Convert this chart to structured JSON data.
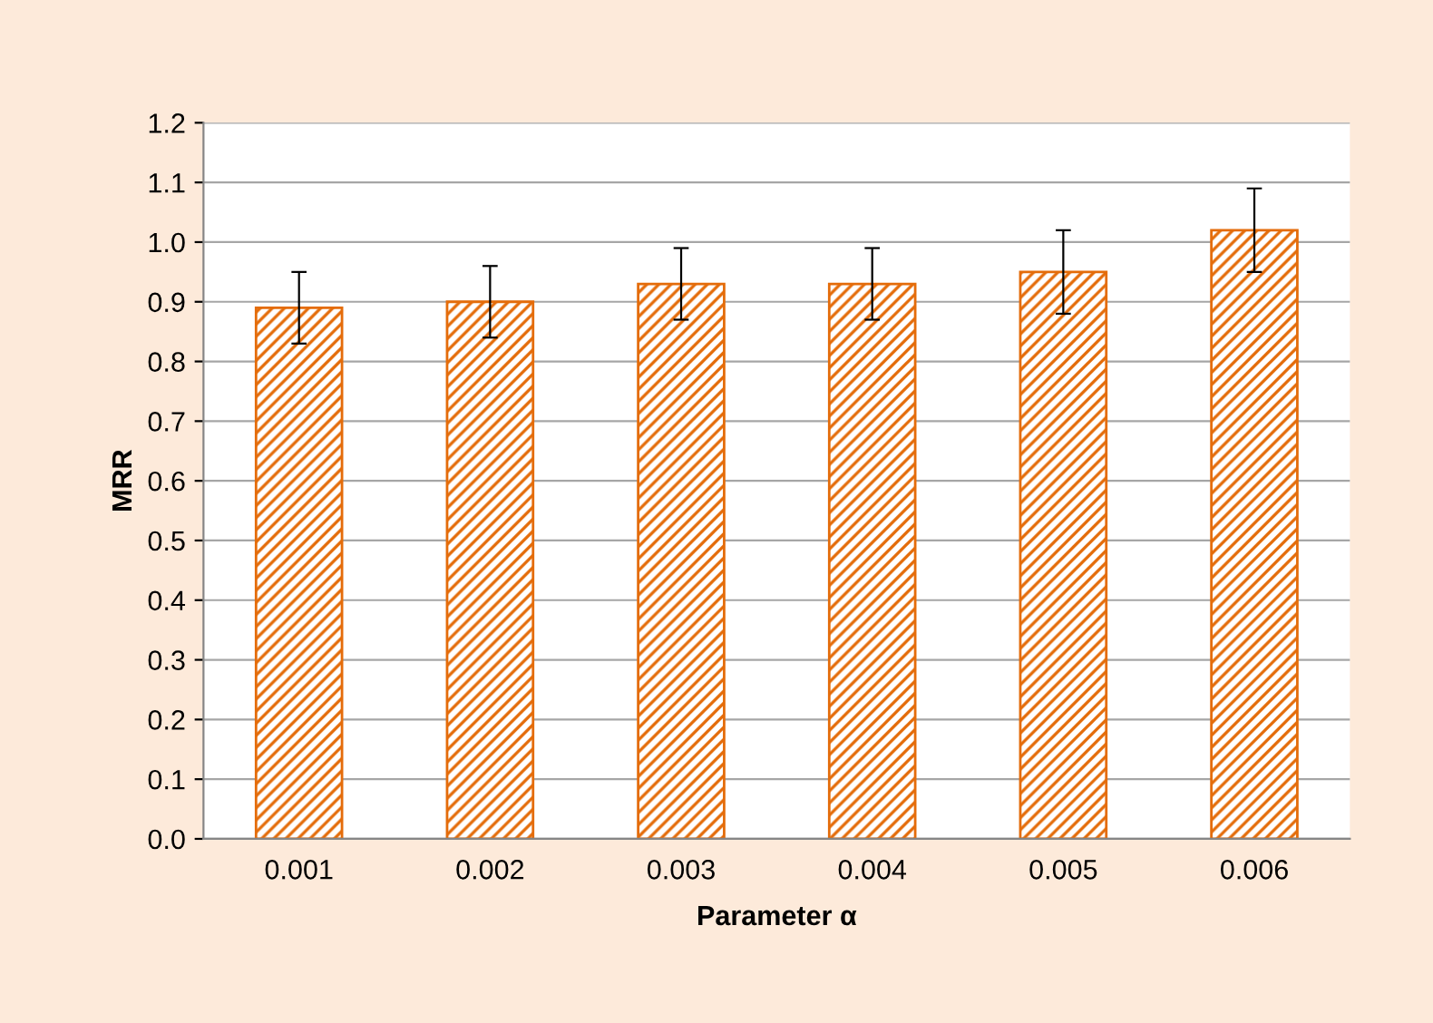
{
  "chart_data": {
    "type": "bar",
    "xlabel": "Parameter α",
    "ylabel": "MRR",
    "categories": [
      "0.001",
      "0.002",
      "0.003",
      "0.004",
      "0.005",
      "0.006"
    ],
    "values": [
      0.89,
      0.9,
      0.93,
      0.93,
      0.95,
      1.02
    ],
    "errors": [
      0.06,
      0.06,
      0.06,
      0.06,
      0.07,
      0.07
    ],
    "color": "#e46c0a",
    "ylim": [
      0,
      1.2
    ],
    "yticks": [
      {
        "value": 0,
        "label": "0.0"
      },
      {
        "value": 0.1,
        "label": "0.1"
      },
      {
        "value": 0.2,
        "label": "0.2"
      },
      {
        "value": 0.3,
        "label": "0.3"
      },
      {
        "value": 0.4,
        "label": "0.4"
      },
      {
        "value": 0.5,
        "label": "0.5"
      },
      {
        "value": 0.6,
        "label": "0.6"
      },
      {
        "value": 0.7,
        "label": "0.7"
      },
      {
        "value": 0.8,
        "label": "0.8"
      },
      {
        "value": 0.9,
        "label": "0.9"
      },
      {
        "value": 1.0,
        "label": "1.0"
      },
      {
        "value": 1.1,
        "label": "1.1"
      },
      {
        "value": 1.2,
        "label": "1.2"
      }
    ],
    "grid": "y",
    "legend": false
  }
}
